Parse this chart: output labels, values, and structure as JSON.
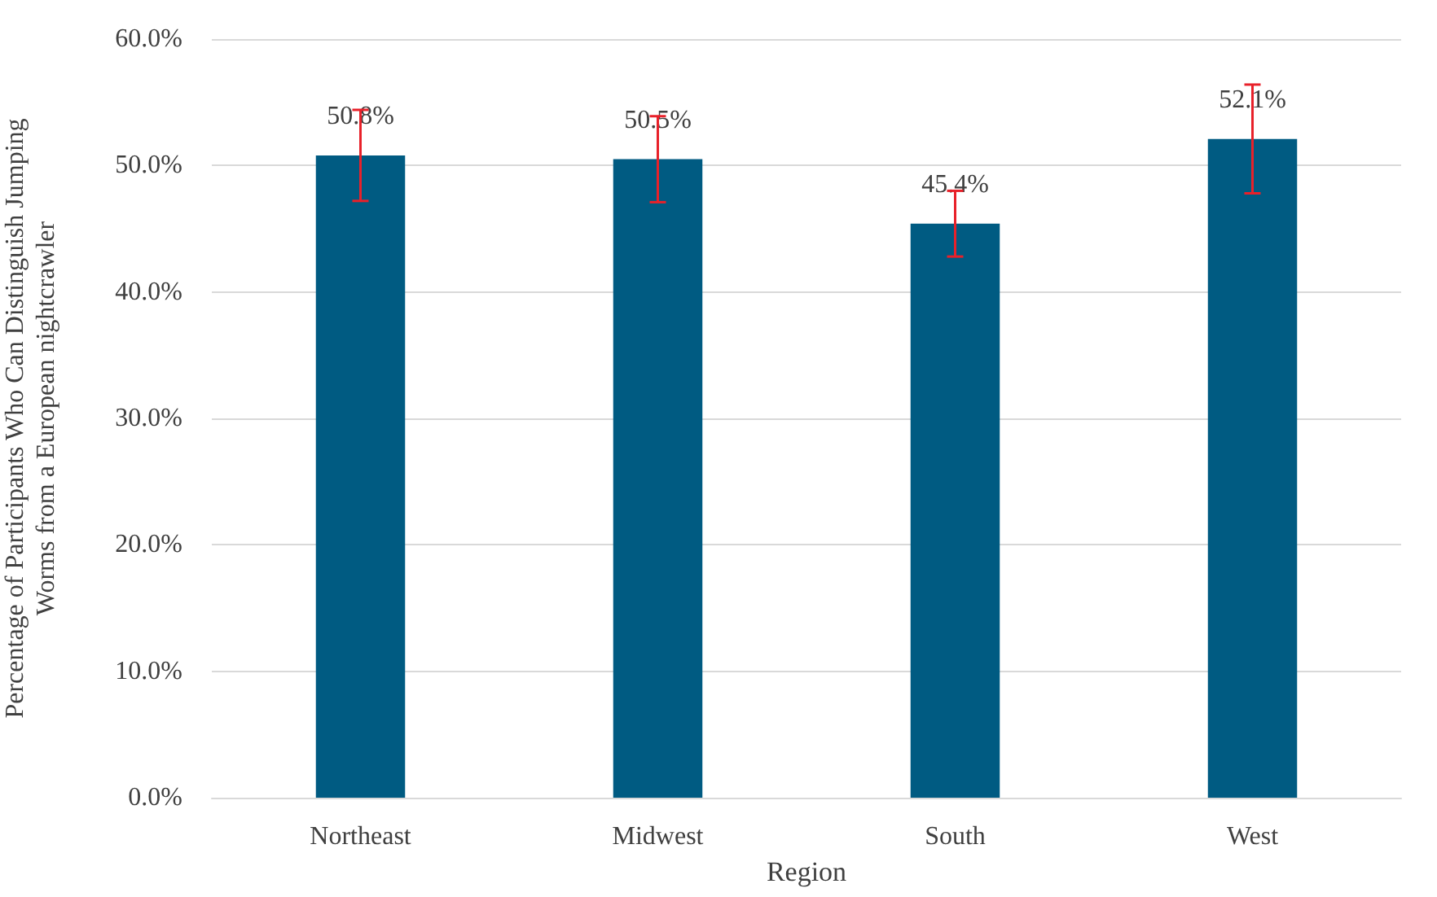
{
  "chart_data": {
    "type": "bar",
    "xlabel": "Region",
    "ylabel": "Percentage of Participants Who Can Distinguish Jumping Worms from a European nightcrawler",
    "categories": [
      "Northeast",
      "Midwest",
      "South",
      "West"
    ],
    "values": [
      50.8,
      50.5,
      45.4,
      52.1
    ],
    "color": "#005b82",
    "errors": [
      3.6,
      3.4,
      2.6,
      4.3
    ],
    "value_labels": [
      "50.8%",
      "50.5%",
      "45.4%",
      "52.1%"
    ],
    "ylim": [
      0,
      60
    ],
    "yticks": [
      {
        "value": 0,
        "label": "0.0%"
      },
      {
        "value": 10,
        "label": "10.0%"
      },
      {
        "value": 20,
        "label": "20.0%"
      },
      {
        "value": 30,
        "label": "30.0%"
      },
      {
        "value": 40,
        "label": "40.0%"
      },
      {
        "value": 50,
        "label": "50.0%"
      },
      {
        "value": 60,
        "label": "60.0%"
      }
    ],
    "grid": "y"
  }
}
